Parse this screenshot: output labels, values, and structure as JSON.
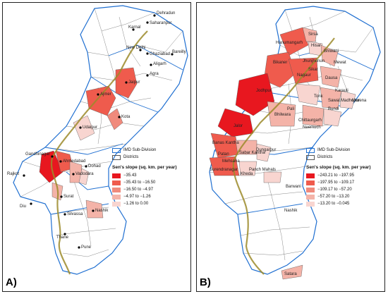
{
  "panels": [
    {
      "label": "A)",
      "legend": {
        "subdivision": "IMD Sub-Division",
        "districts": "Districts",
        "title": "Sen's slope (sq. km. per year)",
        "classes": [
          {
            "label": "−35.43",
            "color": "#e8171f"
          },
          {
            "label": "−35.43 to −16.50",
            "color": "#ef5b4d"
          },
          {
            "label": "−16.50 to −4.97",
            "color": "#f08a7c"
          },
          {
            "label": "−4.97 to −1.26",
            "color": "#f4b3a8"
          },
          {
            "label": "−1.26 to 0.00",
            "color": "#f8d5d0"
          }
        ]
      },
      "places": [
        "Dehradun",
        "Saharanpur",
        "Karnal",
        "New Delhi",
        "Ghaziabad",
        "Bareilly",
        "Aligarh",
        "Agra",
        "Jaipur",
        "Ajmer",
        "Kota",
        "Udaipur",
        "Gandhinagar",
        "Ahmedabad",
        "Dohad",
        "Rajkot",
        "Vadodara",
        "Diu",
        "Surat",
        "Silvassa",
        "Nashik",
        "Thane",
        "Pune"
      ]
    },
    {
      "label": "B)",
      "legend": {
        "subdivision": "IMD Sub-Division",
        "districts": "Districts",
        "title": "Sen's slope (sq. km. per year)",
        "classes": [
          {
            "label": "−243.21 to −197.95",
            "color": "#e8171f"
          },
          {
            "label": "−197.95 to −109.17",
            "color": "#ef5b4d"
          },
          {
            "label": "−109.17 to −57.20",
            "color": "#f08a7c"
          },
          {
            "label": "−57.20 to −13.20",
            "color": "#f4b3a8"
          },
          {
            "label": "−13.20 to −0.045",
            "color": "#f8d5d0"
          }
        ]
      },
      "places": [
        "Hanumangarh",
        "Sirsa",
        "Hisar",
        "Bikaner",
        "Bhiwani",
        "Jhunjhunun",
        "Nagaur",
        "Sikar",
        "Mewat",
        "Jodhpur",
        "Dausa",
        "Karauli",
        "Pali",
        "Tonk",
        "Sawai Madhopur",
        "Morena",
        "Bhilwara",
        "Bundi",
        "Jalor",
        "Chittaurgarh",
        "Neemuch",
        "Banas Kantha",
        "Dungarpur",
        "Patan",
        "Sabar Kantha",
        "Mehsana",
        "Surendranagar",
        "Panch Mahals",
        "Kheda",
        "Barwani",
        "Satara",
        "Nashik"
      ]
    }
  ]
}
